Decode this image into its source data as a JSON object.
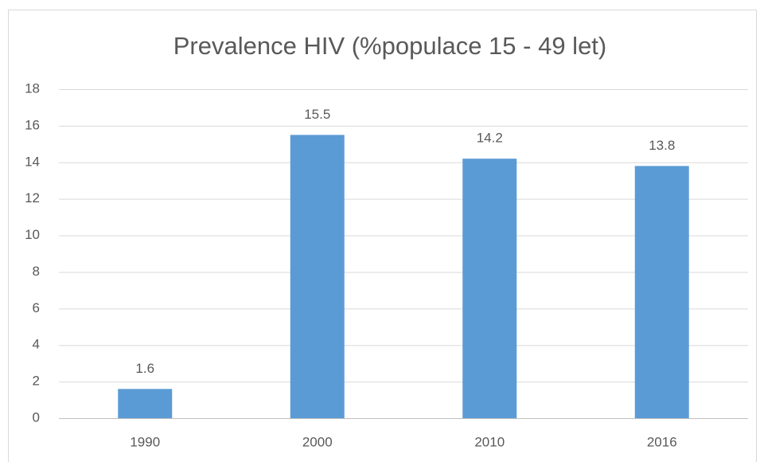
{
  "chart_data": {
    "type": "bar",
    "title": "Prevalence HIV (%populace 15 - 49 let)",
    "categories": [
      "1990",
      "2000",
      "2010",
      "2016"
    ],
    "values": [
      1.6,
      15.5,
      14.2,
      13.8
    ],
    "color": "#5b9bd5",
    "ylim": [
      0,
      18
    ],
    "yticks": [
      0,
      2,
      4,
      6,
      8,
      10,
      12,
      14,
      16,
      18
    ],
    "grid": true
  }
}
